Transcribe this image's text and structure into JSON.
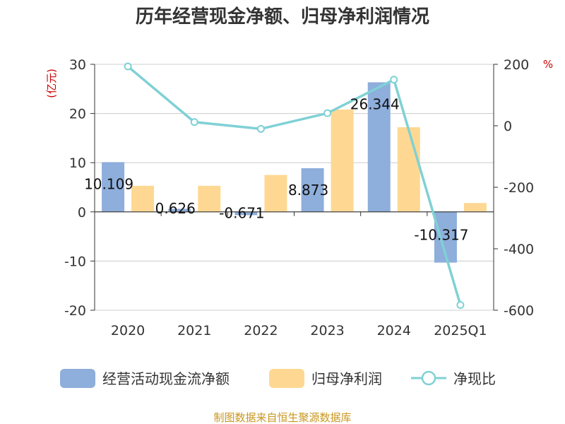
{
  "chart_data": {
    "type": "bar+line",
    "title": "历年经营现金净额、归母净利润情况",
    "categories": [
      "2020",
      "2021",
      "2022",
      "2023",
      "2024",
      "2025Q1"
    ],
    "y_left": {
      "unit": "(亿元)",
      "range": [
        -20,
        30
      ],
      "ticks": [
        30,
        20,
        10,
        0,
        -10,
        -20
      ]
    },
    "y_right": {
      "unit": "%",
      "range": [
        -600,
        200
      ],
      "ticks": [
        200,
        0,
        -200,
        -400,
        -600
      ]
    },
    "series": [
      {
        "name": "经营活动现金流净额",
        "kind": "bar",
        "axis": "left",
        "color": "#8eaedb",
        "values": [
          10.109,
          0.626,
          -0.671,
          8.873,
          26.344,
          -10.317
        ],
        "labels": [
          "10.109",
          "0.626",
          "-0.671",
          "8.873",
          "26.344",
          "-10.317"
        ]
      },
      {
        "name": "归母净利润",
        "kind": "bar",
        "axis": "left",
        "color": "#fed892",
        "values": [
          5.3,
          5.3,
          7.5,
          20.8,
          17.2,
          1.8
        ]
      },
      {
        "name": "净现比",
        "kind": "line",
        "axis": "right",
        "color": "#7fd1d5",
        "values": [
          193,
          12,
          -10,
          41,
          150,
          -583
        ]
      }
    ],
    "grid": true,
    "legend_position": "bottom"
  },
  "source": "制图数据来自恒生聚源数据库"
}
